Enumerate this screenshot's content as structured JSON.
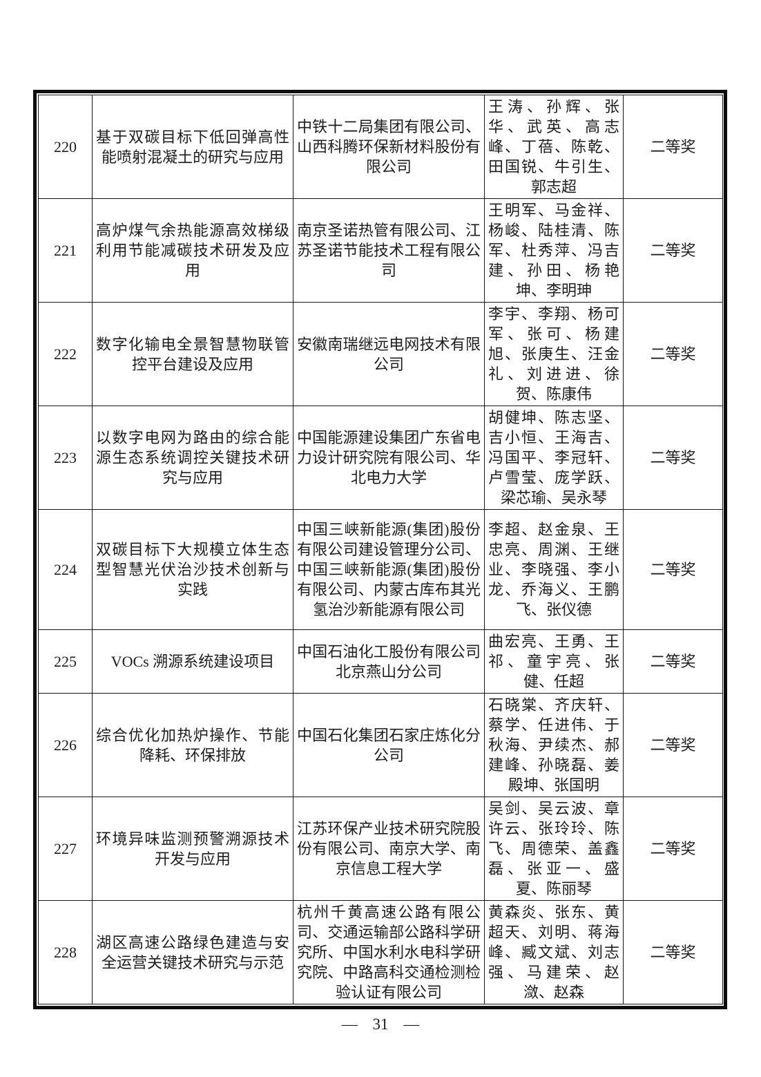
{
  "page": {
    "number_label": "— 31 —"
  },
  "table": {
    "award_color": "#1d1d1d",
    "rows": [
      {
        "no": "220",
        "project": "基于双碳目标下低回弹高性能喷射混凝土的研究与应用",
        "org": "中铁十二局集团有限公司、山西科腾环保新材料股份有限公司",
        "people": "王涛、孙辉、张华、武英、高志峰、丁蓓、陈乾、田国锐、牛引生、郭志超",
        "award": "二等奖"
      },
      {
        "no": "221",
        "project": "高炉煤气余热能源高效梯级利用节能减碳技术研发及应用",
        "org": "南京圣诺热管有限公司、江苏圣诺节能技术工程有限公司",
        "people": "王明军、马金祥、杨峻、陆桂清、陈军、杜秀萍、冯吉建、孙田、杨艳坤、李明珅",
        "award": "二等奖"
      },
      {
        "no": "222",
        "project": "数字化输电全景智慧物联管控平台建设及应用",
        "org": "安徽南瑞继远电网技术有限公司",
        "people": "李宇、李翔、杨可军、张可、杨建旭、张庚生、汪金礼、刘进进、徐贺、陈康伟",
        "award": "二等奖"
      },
      {
        "no": "223",
        "project": "以数字电网为路由的综合能源生态系统调控关键技术研究与应用",
        "org": "中国能源建设集团广东省电力设计研究院有限公司、华北电力大学",
        "people": "胡健坤、陈志坚、吉小恒、王海吉、冯国平、李冠轩、卢雪莹、庞学跃、梁芯瑜、吴永琴",
        "award": "二等奖"
      },
      {
        "no": "224",
        "project": "双碳目标下大规模立体生态型智慧光伏治沙技术创新与实践",
        "org": "中国三峡新能源(集团)股份有限公司建设管理分公司、中国三峡新能源(集团)股份有限公司、内蒙古库布其光氢治沙新能源有限公司",
        "people": "李超、赵金泉、王忠亮、周渊、王继业、李晓强、李小龙、乔海义、王鹏飞、张仪德",
        "award": "二等奖"
      },
      {
        "no": "225",
        "project": "VOCs 溯源系统建设项目",
        "org": "中国石油化工股份有限公司北京燕山分公司",
        "people": "曲宏亮、王勇、王祁、童宇亮、张健、任超",
        "award": "二等奖"
      },
      {
        "no": "226",
        "project": "综合优化加热炉操作、节能降耗、环保排放",
        "org": "中国石化集团石家庄炼化分公司",
        "people": "石晓棠、齐庆轩、蔡学、任进伟、于秋海、尹续杰、郝建峰、孙晓磊、姜殿坤、张国明",
        "award": "二等奖"
      },
      {
        "no": "227",
        "project": "环境异味监测预警溯源技术开发与应用",
        "org": "江苏环保产业技术研究院股份有限公司、南京大学、南京信息工程大学",
        "people": "吴剑、吴云波、章许云、张玲玲、陈飞、周德荣、盖鑫磊、张亚一、盛夏、陈丽琴",
        "award": "二等奖"
      },
      {
        "no": "228",
        "project": "湖区高速公路绿色建造与安全运营关键技术研究与示范",
        "org": "杭州千黄高速公路有限公司、交通运输部公路科学研究所、中国水利水电科学研究院、中路高科交通检测检验认证有限公司",
        "people": "黄森炎、张东、黄超天、刘明、蒋海峰、臧文斌、刘志强、马建荣、赵潋、赵森",
        "award": "二等奖"
      }
    ]
  }
}
